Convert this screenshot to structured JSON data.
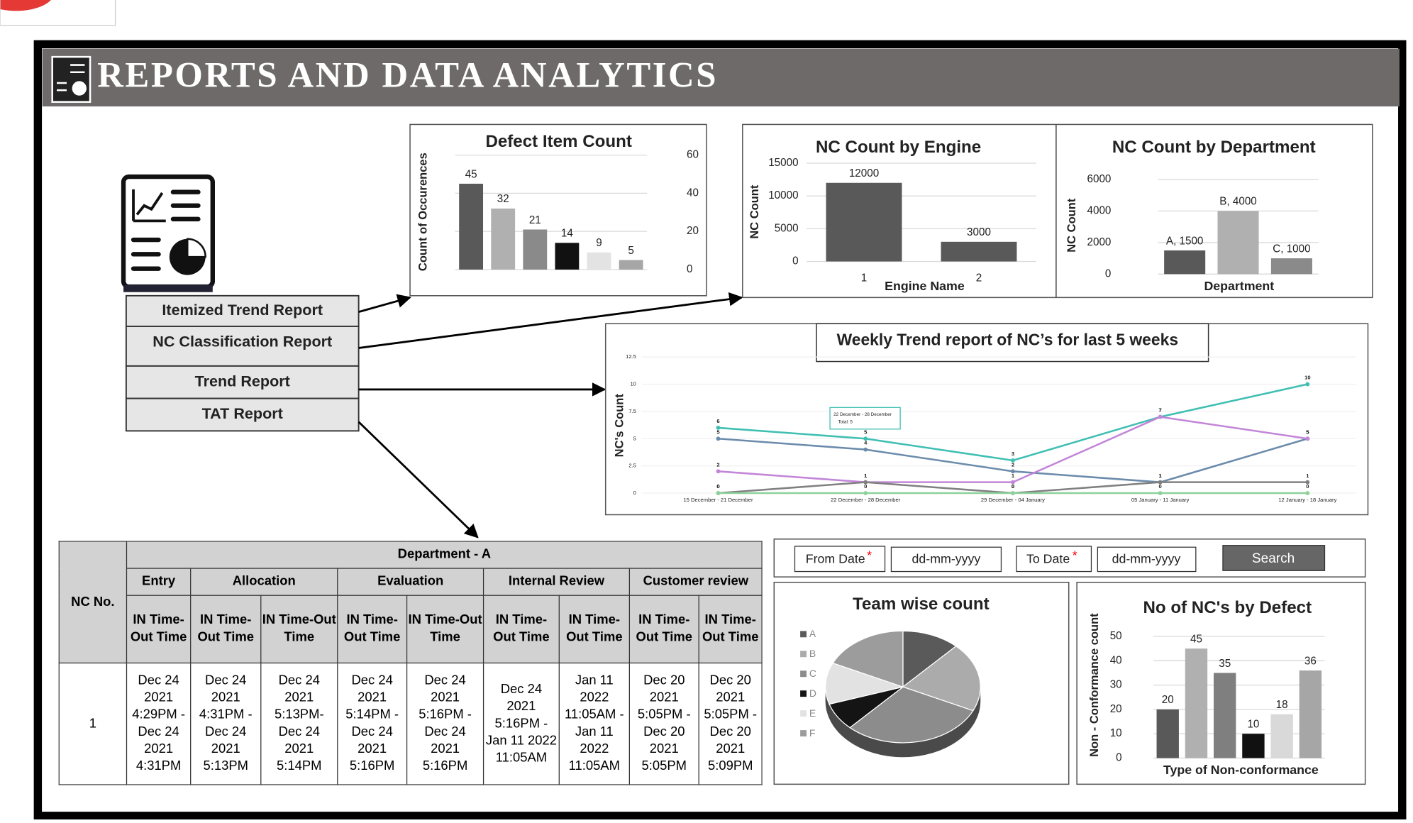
{
  "header": {
    "title": "REPORTS AND DATA ANALYTICS"
  },
  "menu": [
    "Itemized Trend Report",
    "NC Classification Report",
    "Trend Report",
    "TAT Report"
  ],
  "chart_data": [
    {
      "type": "bar",
      "title": "Defect Item Count",
      "y_label": "Count of Occurences",
      "categories": [
        null,
        null,
        null,
        null,
        null,
        null
      ],
      "values": [
        45,
        32,
        21,
        14,
        9,
        5
      ],
      "colors": [
        "#595959",
        "#b0b0b0",
        "#8a8a8a",
        "#111111",
        "#e3e3e3",
        "#a6a6a6"
      ],
      "ylim": [
        0,
        60
      ],
      "yticks": [
        0,
        20,
        40,
        60
      ],
      "y_axis_side": "right",
      "grid": true
    },
    {
      "type": "bar",
      "title": "NC Count by Engine",
      "x_label": "Engine Name",
      "y_label": "NC Count",
      "categories": [
        "1",
        "2"
      ],
      "values": [
        12000,
        3000
      ],
      "color": "#595959",
      "ylim": [
        0,
        15000
      ],
      "yticks": [
        0,
        5000,
        10000,
        15000
      ],
      "y_axis_side": "left",
      "grid": true
    },
    {
      "type": "bar",
      "title": "NC Count by Department",
      "x_label": "Department",
      "y_label": "NC Count",
      "categories": [
        null,
        null,
        null
      ],
      "values": [
        1500,
        4000,
        1000
      ],
      "value_labels": [
        "A, 1500",
        "B, 4000",
        "C, 1000"
      ],
      "colors": [
        "#595959",
        "#b0b0b0",
        "#8a8a8a"
      ],
      "ylim": [
        0,
        6000
      ],
      "yticks": [
        0,
        2000,
        4000,
        6000
      ],
      "y_axis_side": "left",
      "grid": true
    },
    {
      "type": "line",
      "title": "Weekly Trend report of NC’s for last 5 weeks",
      "y_label": "NC's Count",
      "categories": [
        "15 December - 21 December",
        "22 December - 28 December",
        "29 December - 04 January",
        "05 January - 11 January",
        "12 January - 18 January"
      ],
      "series": [
        {
          "color": "#3fbfb2",
          "values": [
            6,
            5,
            3,
            7,
            10
          ]
        },
        {
          "color": "#6b8bab",
          "values": [
            5,
            4,
            2,
            1,
            5
          ]
        },
        {
          "color": "#c285d8",
          "values": [
            2,
            1,
            1,
            7,
            5
          ]
        },
        {
          "color": "#808080",
          "values": [
            0,
            1,
            0,
            1,
            1
          ]
        },
        {
          "color": "#8fd19a",
          "values": [
            0,
            0,
            0,
            0,
            0
          ]
        }
      ],
      "ylim": [
        0,
        12.5
      ],
      "yticks": [
        0,
        2.5,
        5,
        7.5,
        10,
        12.5
      ],
      "grid": true,
      "tooltip": {
        "title": "22 December - 28 December",
        "text": "Total: 5"
      }
    },
    {
      "type": "pie",
      "title": "Team wise count",
      "categories": [
        "A",
        "B",
        "C",
        "D",
        "E",
        "F"
      ],
      "values": [
        12,
        20,
        30,
        8,
        12,
        18
      ],
      "colors": [
        "#5a5a5a",
        "#ababab",
        "#8c8c8c",
        "#141414",
        "#e2e2e2",
        "#9c9c9c"
      ],
      "legend": "left"
    },
    {
      "type": "bar",
      "title": "No  of NC's by Defect",
      "x_label": "Type of Non-conformance",
      "y_label": "Non - Conformance count",
      "categories": [
        null,
        null,
        null,
        null,
        null,
        null
      ],
      "values": [
        20,
        45,
        35,
        10,
        18,
        36
      ],
      "colors": [
        "#595959",
        "#b0b0b0",
        "#7f7f7f",
        "#111111",
        "#d9d9d9",
        "#a6a6a6"
      ],
      "ylim": [
        0,
        50
      ],
      "yticks": [
        0,
        10,
        20,
        30,
        40,
        50
      ],
      "y_axis_side": "left",
      "grid": true
    }
  ],
  "filter": {
    "from_label": "From Date",
    "to_label": "To Date",
    "required": "*",
    "placeholder": "dd-mm-yyyy",
    "button": "Search"
  },
  "table": {
    "nc_header": "NC No.",
    "group": "Department - A",
    "stages": [
      "Entry",
      "Allocation",
      "Evaluation",
      "Internal Review",
      "Customer review"
    ],
    "columns": [
      "IN Time-Out Time",
      "IN Time-Out Time",
      "IN Time-Out Time",
      "IN Time-Out Time",
      "IN Time-Out Time",
      "IN Time-Out Time",
      "IN Time-Out Time",
      "IN Time-Out Time",
      "IN Time-Out Time"
    ],
    "rows": [
      [
        "1",
        "Dec 24 2021 4:29PM - Dec 24 2021 4:31PM",
        "Dec 24 2021 4:31PM - Dec 24 2021 5:13PM",
        "Dec 24 2021 5:13PM- Dec 24 2021 5:14PM",
        "Dec 24 2021 5:14PM - Dec 24 2021 5:16PM",
        "Dec 24 2021 5:16PM -Dec 24 2021 5:16PM",
        "Dec 24 2021 5:16PM - Jan 11 2022 11:05AM",
        "Jan 11 2022 11:05AM - Jan 11 2022 11:05AM",
        "Dec 20 2021 5:05PM - Dec 20 2021 5:05PM",
        "Dec 20 2021 5:05PM - Dec 20 2021 5:09PM"
      ]
    ]
  }
}
